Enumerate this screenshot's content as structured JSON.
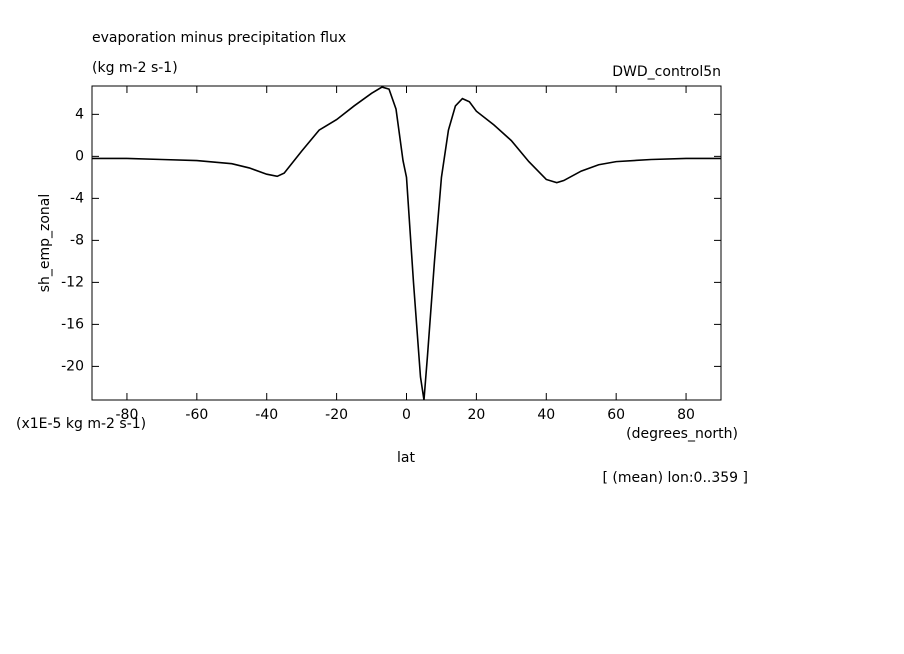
{
  "chart_data": {
    "type": "line",
    "title": "evaporation minus precipitation flux",
    "subtitle": "(kg m-2 s-1)",
    "dataset": "DWD_control5n",
    "ylabel": "sh_emp_zonal",
    "xlabel": "lat",
    "x_units": "(degrees_north)",
    "y_units": "(x1E-5 kg m-2 s-1)",
    "note": "[ (mean) lon:0..359 ]",
    "x": [
      -90,
      -80,
      -70,
      -60,
      -50,
      -45,
      -40,
      -37,
      -35,
      -30,
      -25,
      -20,
      -15,
      -10,
      -7,
      -5,
      -3,
      -1,
      0,
      2,
      4,
      5,
      6,
      8,
      10,
      12,
      14,
      16,
      18,
      20,
      25,
      30,
      35,
      40,
      43,
      45,
      50,
      55,
      60,
      70,
      80,
      90
    ],
    "series": [
      {
        "color": "#000000",
        "values": [
          -0.2,
          -0.2,
          -0.3,
          -0.4,
          -0.7,
          -1.1,
          -1.7,
          -1.9,
          -1.6,
          0.5,
          2.5,
          3.5,
          4.8,
          6.0,
          6.6,
          6.4,
          4.5,
          -0.4,
          -2,
          -12,
          -21,
          -23.2,
          -19,
          -10,
          -2,
          2.5,
          4.8,
          5.5,
          5.2,
          4.3,
          3,
          1.5,
          -0.5,
          -2.2,
          -2.5,
          -2.3,
          -1.4,
          -0.8,
          -0.5,
          -0.3,
          -0.2,
          -0.2
        ]
      }
    ],
    "xlim": [
      -90,
      90
    ],
    "xticks": [
      -80,
      -60,
      -40,
      -20,
      0,
      20,
      40,
      60,
      80
    ],
    "ylim": [
      -23.2,
      6.7
    ],
    "yticks": [
      4,
      0,
      -4,
      -8,
      -12,
      -16,
      -20
    ]
  }
}
